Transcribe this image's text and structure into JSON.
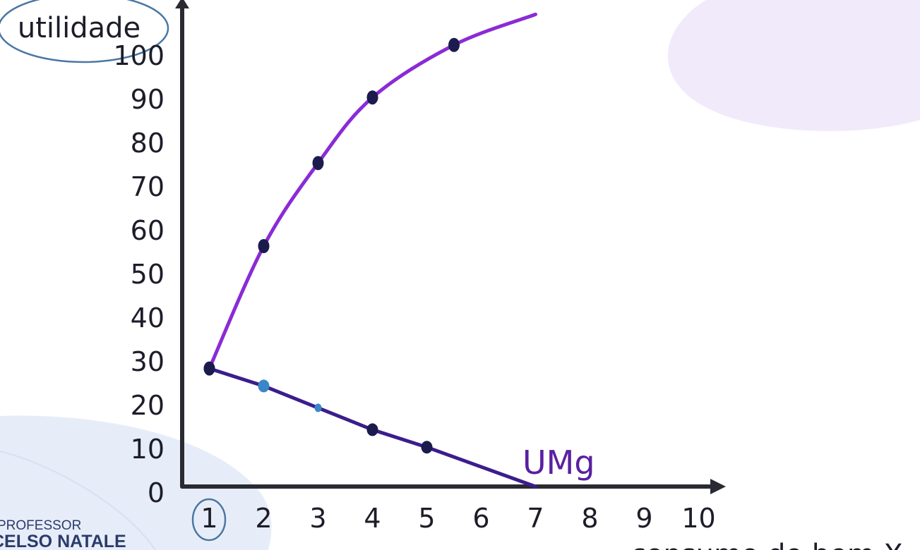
{
  "chart_data": {
    "type": "line",
    "ylabel": "utilidade",
    "xlabel": "consumo do bem X",
    "x_ticks": [
      "1",
      "2",
      "3",
      "4",
      "5",
      "6",
      "7",
      "8",
      "9",
      "10"
    ],
    "y_ticks": [
      "0",
      "10",
      "20",
      "30",
      "40",
      "50",
      "60",
      "70",
      "80",
      "90",
      "100"
    ],
    "xlim": [
      0,
      10
    ],
    "ylim": [
      0,
      100
    ],
    "grid": false,
    "series": [
      {
        "name": "",
        "color": "#8a2bd6",
        "values": [
          [
            1,
            27
          ],
          [
            2,
            55
          ],
          [
            3,
            74
          ],
          [
            4,
            89
          ],
          [
            5.5,
            101
          ]
        ],
        "curve_end": [
          7,
          108
        ]
      },
      {
        "name": "UMg",
        "color": "#3b1d8c",
        "values": [
          [
            1,
            27
          ],
          [
            2,
            23
          ],
          [
            3,
            18
          ],
          [
            4,
            13
          ],
          [
            5,
            9
          ],
          [
            7,
            0
          ]
        ]
      }
    ]
  },
  "watermark": {
    "line1": "PROFESSOR",
    "line2": "CELSO NATALE"
  }
}
